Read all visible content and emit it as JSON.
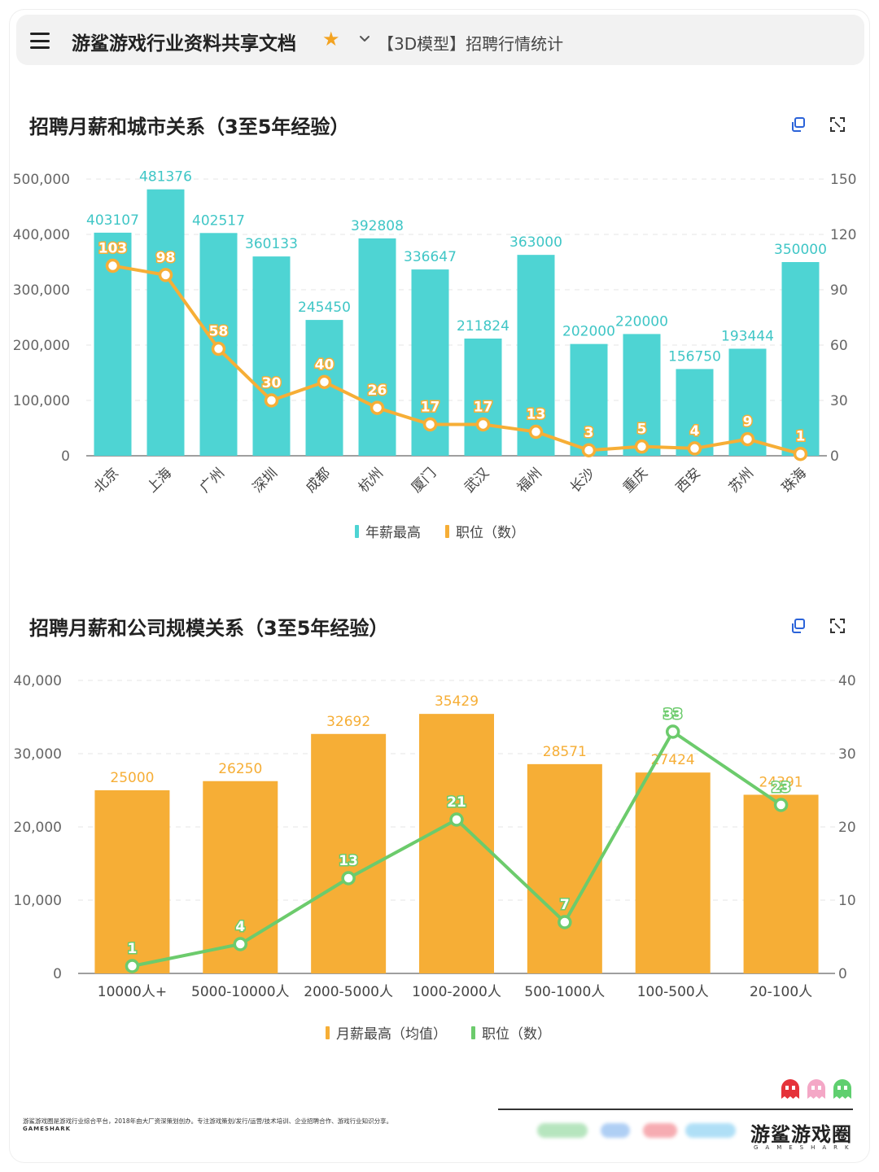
{
  "header": {
    "app_title": "游鲨游戏行业资料共享文档",
    "doc_title": "【3D模型】招聘行情统计"
  },
  "icons": {
    "menu": "hamburger-icon",
    "favorite": "star-icon",
    "dropdown": "chevron-down-icon",
    "copy": "copy-icon",
    "expand": "expand-icon"
  },
  "colors": {
    "teal": "#4ed4d3",
    "orange": "#f6ae36",
    "green": "#6ccb6c",
    "grid": "#e6e6e6"
  },
  "chart_data": [
    {
      "type": "bar",
      "title": "招聘月薪和城市关系（3至5年经验）",
      "categories": [
        "北京",
        "上海",
        "广州",
        "深圳",
        "成都",
        "杭州",
        "厦门",
        "武汉",
        "福州",
        "长沙",
        "重庆",
        "西安",
        "苏州",
        "珠海"
      ],
      "series": [
        {
          "name": "年薪最高",
          "type": "bar",
          "axis": "left",
          "color": "#4ed4d3",
          "values": [
            403107,
            481376,
            402517,
            360133,
            245450,
            392808,
            336647,
            211824,
            363000,
            202000,
            220000,
            156750,
            193444,
            350000
          ]
        },
        {
          "name": "职位（数）",
          "type": "line",
          "axis": "right",
          "color": "#f6ae36",
          "values": [
            103,
            98,
            58,
            30,
            40,
            26,
            17,
            17,
            13,
            3,
            5,
            4,
            9,
            1
          ]
        }
      ],
      "y_left": {
        "ticks": [
          "0",
          "100,000",
          "200,000",
          "300,000",
          "400,000",
          "500,000"
        ],
        "range": [
          0,
          500000
        ]
      },
      "y_right": {
        "ticks": [
          "0",
          "30",
          "60",
          "90",
          "120",
          "150"
        ],
        "range": [
          0,
          150
        ]
      },
      "legend": "bottom-center",
      "grid": true
    },
    {
      "type": "bar",
      "title": "招聘月薪和公司规模关系（3至5年经验）",
      "categories": [
        "10000人+",
        "5000-10000人",
        "2000-5000人",
        "1000-2000人",
        "500-1000人",
        "100-500人",
        "20-100人"
      ],
      "series": [
        {
          "name": "月薪最高（均值）",
          "type": "bar",
          "axis": "left",
          "color": "#f6ae36",
          "values": [
            25000,
            26250,
            32692,
            35429,
            28571,
            27424,
            24391
          ]
        },
        {
          "name": "职位（数）",
          "type": "line",
          "axis": "right",
          "color": "#6ccb6c",
          "values": [
            1,
            4,
            13,
            21,
            7,
            33,
            23
          ]
        }
      ],
      "y_left": {
        "ticks": [
          "0",
          "10,000",
          "20,000",
          "30,000",
          "40,000"
        ],
        "range": [
          0,
          40000
        ]
      },
      "y_right": {
        "ticks": [
          "0",
          "10",
          "20",
          "30",
          "40"
        ],
        "range": [
          0,
          40
        ]
      },
      "legend": "bottom-center",
      "grid": true
    }
  ],
  "footer": {
    "description": "游鲨游戏圈是游戏行业综合平台，2018年由大厂资深策划创办。专注游戏策划/发行/运营/技术培训、企业招聘合作、游戏行业知识分享。",
    "brand_small": "GAMESHARK",
    "brand_main": "游鲨游戏圈",
    "brand_sub": "GAMESHARK"
  }
}
